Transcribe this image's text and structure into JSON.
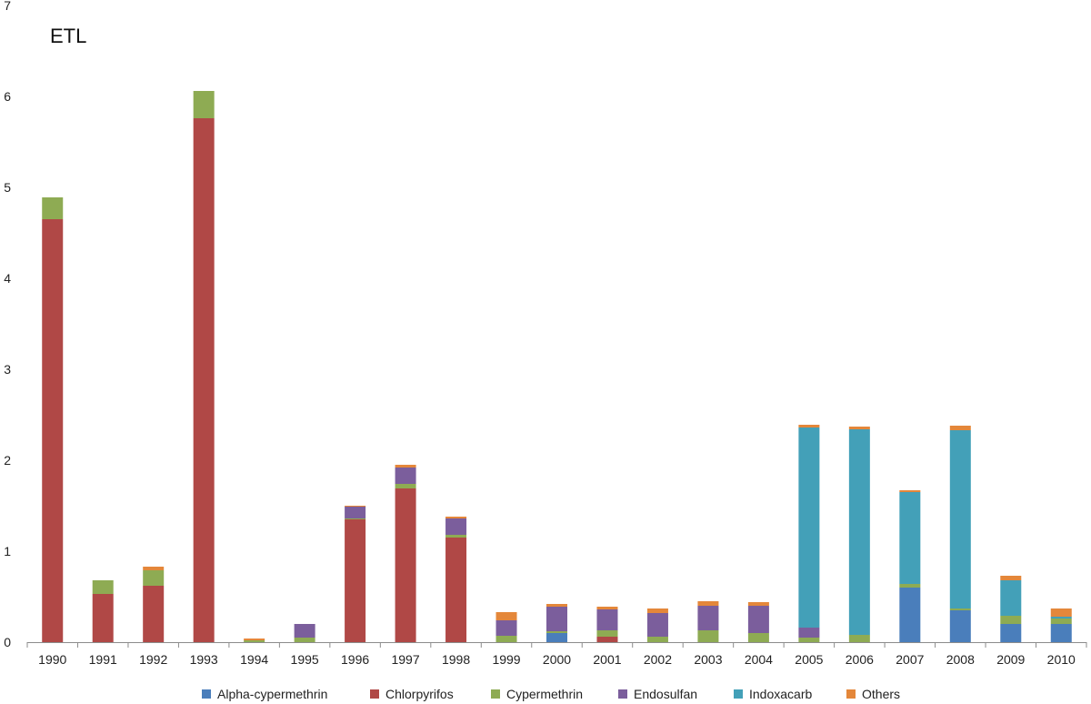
{
  "chart_data": {
    "type": "bar",
    "stacked": true,
    "title": "ETL",
    "xlabel": "",
    "ylabel": "",
    "ylim": [
      0,
      7
    ],
    "yticks": [
      0,
      1,
      2,
      3,
      4,
      5,
      6,
      7
    ],
    "grid": false,
    "legend_position": "bottom",
    "categories": [
      "1990",
      "1991",
      "1992",
      "1993",
      "1994",
      "1995",
      "1996",
      "1997",
      "1998",
      "1999",
      "2000",
      "2001",
      "2002",
      "2003",
      "2004",
      "2005",
      "2006",
      "2007",
      "2008",
      "2009",
      "2010"
    ],
    "series": [
      {
        "name": "Alpha-cypermethrin",
        "color": "#4a7ebb",
        "values": [
          0,
          0,
          0,
          0,
          0,
          0,
          0,
          0,
          0,
          0,
          0.1,
          0,
          0,
          0,
          0,
          0,
          0,
          0.6,
          0.35,
          0.2,
          0.2
        ]
      },
      {
        "name": "Chlorpyrifos",
        "color": "#b04846",
        "values": [
          4.65,
          0.53,
          0.62,
          5.76,
          0,
          0,
          1.35,
          1.69,
          1.15,
          0,
          0,
          0.06,
          0,
          0,
          0,
          0,
          0,
          0,
          0,
          0,
          0
        ]
      },
      {
        "name": "Cypermethrin",
        "color": "#8eab53",
        "values": [
          0.24,
          0.15,
          0.17,
          0.3,
          0.02,
          0.05,
          0.01,
          0.05,
          0.03,
          0.07,
          0.02,
          0.07,
          0.06,
          0.13,
          0.1,
          0.05,
          0.08,
          0.04,
          0.02,
          0.09,
          0.06
        ]
      },
      {
        "name": "Endosulfan",
        "color": "#7b5e9c",
        "values": [
          0,
          0,
          0,
          0,
          0,
          0.15,
          0.13,
          0.18,
          0.18,
          0.17,
          0.27,
          0.23,
          0.26,
          0.27,
          0.3,
          0.11,
          0,
          0,
          0,
          0,
          0
        ]
      },
      {
        "name": "Indoxacarb",
        "color": "#43a0b8",
        "values": [
          0,
          0,
          0,
          0,
          0,
          0,
          0,
          0,
          0,
          0,
          0,
          0,
          0,
          0,
          0,
          2.2,
          2.26,
          1.01,
          1.96,
          0.39,
          0.02
        ]
      },
      {
        "name": "Others",
        "color": "#e4873a",
        "values": [
          0,
          0,
          0.04,
          0,
          0.02,
          0,
          0.01,
          0.03,
          0.02,
          0.09,
          0.03,
          0.03,
          0.05,
          0.05,
          0.04,
          0.03,
          0.03,
          0.02,
          0.05,
          0.05,
          0.09
        ]
      }
    ]
  }
}
